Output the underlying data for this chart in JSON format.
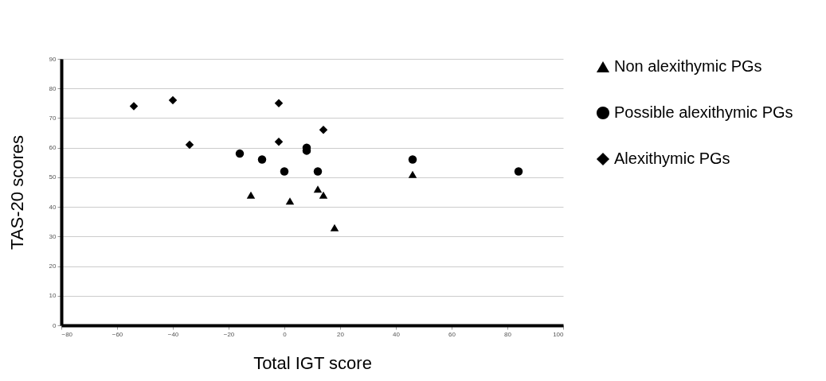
{
  "chart_data": {
    "type": "scatter",
    "xlabel": "Total IGT score",
    "ylabel": "TAS-20 scores",
    "xlim": [
      -80,
      100
    ],
    "xticks": [
      -80,
      -60,
      -40,
      -20,
      0,
      20,
      40,
      60,
      80,
      100
    ],
    "ylim": [
      0,
      90
    ],
    "yticks": [
      0,
      10,
      20,
      30,
      40,
      50,
      60,
      70,
      80,
      90
    ],
    "grid": "y",
    "legend": "right",
    "series": [
      {
        "name": "Non alexithymic PGs",
        "color": "#000000",
        "marker": "triangle",
        "x": [
          -12,
          2,
          12,
          14,
          18,
          46
        ],
        "values": [
          44,
          42,
          46,
          44,
          33,
          51
        ]
      },
      {
        "name": "Possible alexithymic PGs",
        "color": "#000000",
        "marker": "circle",
        "x": [
          -16,
          -8,
          0,
          8,
          8,
          12,
          46,
          84
        ],
        "values": [
          58,
          56,
          52,
          60,
          59,
          52,
          56,
          52
        ]
      },
      {
        "name": "Alexithymic PGs",
        "color": "#000000",
        "marker": "diamond",
        "x": [
          -54,
          -40,
          -34,
          -2,
          -2,
          14
        ],
        "values": [
          74,
          76,
          61,
          75,
          62,
          66
        ]
      }
    ]
  }
}
